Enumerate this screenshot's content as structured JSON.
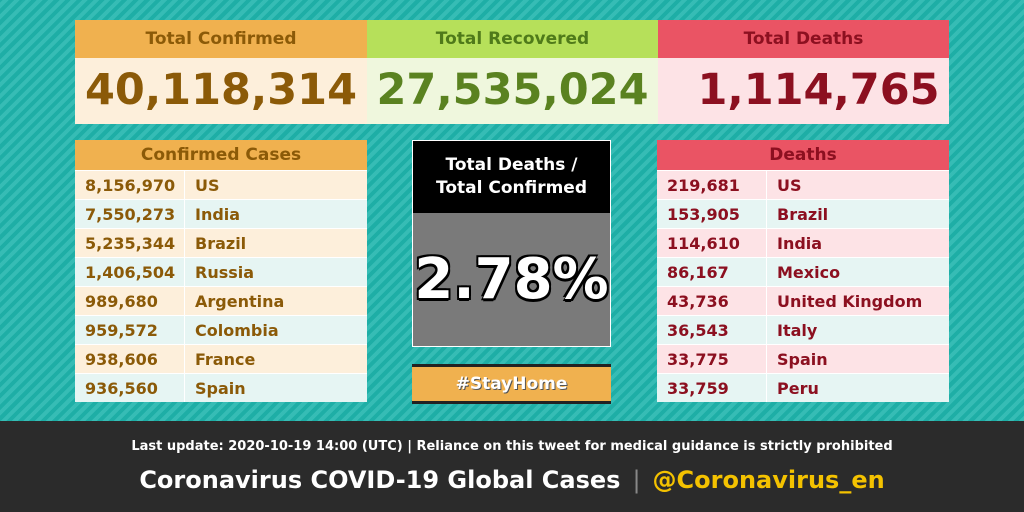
{
  "totals": {
    "confirmed_label": "Total Confirmed",
    "confirmed_value": "40,118,314",
    "recovered_label": "Total Recovered",
    "recovered_value": "27,535,024",
    "deaths_label": "Total Deaths",
    "deaths_value": "1,114,765",
    "colors": {
      "confirmed": "#f0b14f",
      "recovered": "#b6e05a",
      "deaths": "#ea5464",
      "background": "#1fb5ad"
    }
  },
  "confirmed_table": {
    "title": "Confirmed Cases",
    "rows": [
      {
        "value": "8,156,970",
        "country": "US"
      },
      {
        "value": "7,550,273",
        "country": "India"
      },
      {
        "value": "5,235,344",
        "country": "Brazil"
      },
      {
        "value": "1,406,504",
        "country": "Russia"
      },
      {
        "value": "989,680",
        "country": "Argentina"
      },
      {
        "value": "959,572",
        "country": "Colombia"
      },
      {
        "value": "938,606",
        "country": "France"
      },
      {
        "value": "936,560",
        "country": "Spain"
      }
    ]
  },
  "ratio": {
    "line1": "Total Deaths /",
    "line2": "Total Confirmed",
    "value": "2.78%"
  },
  "stayhome": "#StayHome",
  "deaths_table": {
    "title": "Deaths",
    "rows": [
      {
        "value": "219,681",
        "country": "US"
      },
      {
        "value": "153,905",
        "country": "Brazil"
      },
      {
        "value": "114,610",
        "country": "India"
      },
      {
        "value": "86,167",
        "country": "Mexico"
      },
      {
        "value": "43,736",
        "country": "United Kingdom"
      },
      {
        "value": "36,543",
        "country": "Italy"
      },
      {
        "value": "33,775",
        "country": "Spain"
      },
      {
        "value": "33,759",
        "country": "Peru"
      }
    ]
  },
  "footer": {
    "update_text": "Last update: 2020-10-19 14:00 (UTC) | Reliance on this tweet for medical guidance is strictly prohibited",
    "title": "Coronavirus COVID-19 Global Cases",
    "separator": "|",
    "handle": "@Coronavirus_en"
  }
}
